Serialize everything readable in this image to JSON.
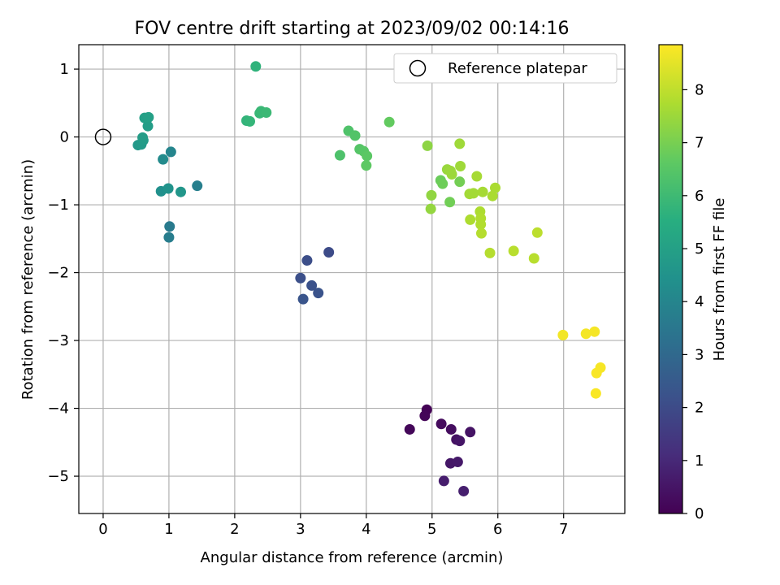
{
  "chart_data": {
    "type": "scatter",
    "title": "FOV centre drift starting at 2023/09/02 00:14:16",
    "xlabel": "Angular distance from reference (arcmin)",
    "ylabel": "Rotation from reference (arcmin)",
    "xlim": [
      -0.37,
      7.93
    ],
    "ylim": [
      -5.55,
      1.36
    ],
    "xticks": [
      0,
      1,
      2,
      3,
      4,
      5,
      6,
      7
    ],
    "xtick_labels": [
      "0",
      "1",
      "2",
      "3",
      "4",
      "5",
      "6",
      "7"
    ],
    "yticks": [
      1,
      0,
      -1,
      -2,
      -3,
      -4,
      -5
    ],
    "ytick_labels": [
      "1",
      "0",
      "−1",
      "−2",
      "−3",
      "−4",
      "−5"
    ],
    "grid": true,
    "colormap": "viridis",
    "colorbar": {
      "label": "Hours from first FF file",
      "range": [
        0,
        8.85
      ],
      "ticks": [
        0,
        1,
        2,
        3,
        4,
        5,
        6,
        7,
        8
      ],
      "tick_labels": [
        "0",
        "1",
        "2",
        "3",
        "4",
        "5",
        "6",
        "7",
        "8"
      ]
    },
    "legend": {
      "position": "top-right",
      "entries": [
        "Reference platepar"
      ]
    },
    "reference_point": {
      "x": 0,
      "y": 0
    },
    "points": [
      {
        "x": 4.92,
        "y": -4.02,
        "c": 0.05
      },
      {
        "x": 4.89,
        "y": -4.11,
        "c": 0.1
      },
      {
        "x": 4.66,
        "y": -4.31,
        "c": 0.15
      },
      {
        "x": 5.14,
        "y": -4.23,
        "c": 0.25
      },
      {
        "x": 5.29,
        "y": -4.31,
        "c": 0.3
      },
      {
        "x": 5.58,
        "y": -4.35,
        "c": 0.45
      },
      {
        "x": 5.37,
        "y": -4.46,
        "c": 0.4
      },
      {
        "x": 5.42,
        "y": -4.48,
        "c": 0.5
      },
      {
        "x": 5.28,
        "y": -4.81,
        "c": 0.55
      },
      {
        "x": 5.39,
        "y": -4.79,
        "c": 0.6
      },
      {
        "x": 5.18,
        "y": -5.07,
        "c": 0.7
      },
      {
        "x": 5.48,
        "y": -5.22,
        "c": 0.75
      },
      {
        "x": 3.43,
        "y": -1.7,
        "c": 2.0
      },
      {
        "x": 3.1,
        "y": -1.82,
        "c": 2.1
      },
      {
        "x": 3.0,
        "y": -2.08,
        "c": 2.15
      },
      {
        "x": 3.17,
        "y": -2.19,
        "c": 2.2
      },
      {
        "x": 3.27,
        "y": -2.3,
        "c": 2.25
      },
      {
        "x": 3.04,
        "y": -2.39,
        "c": 2.3
      },
      {
        "x": 1.01,
        "y": -1.32,
        "c": 3.6
      },
      {
        "x": 1.0,
        "y": -1.48,
        "c": 3.7
      },
      {
        "x": 1.43,
        "y": -0.72,
        "c": 3.8
      },
      {
        "x": 1.03,
        "y": -0.22,
        "c": 4.0
      },
      {
        "x": 0.91,
        "y": -0.33,
        "c": 4.2
      },
      {
        "x": 0.88,
        "y": -0.8,
        "c": 4.4
      },
      {
        "x": 0.99,
        "y": -0.76,
        "c": 4.5
      },
      {
        "x": 1.18,
        "y": -0.81,
        "c": 4.6
      },
      {
        "x": 0.53,
        "y": -0.12,
        "c": 4.7
      },
      {
        "x": 0.58,
        "y": -0.11,
        "c": 4.75
      },
      {
        "x": 0.61,
        "y": -0.05,
        "c": 4.8
      },
      {
        "x": 0.6,
        "y": -0.01,
        "c": 4.85
      },
      {
        "x": 0.68,
        "y": 0.16,
        "c": 4.9
      },
      {
        "x": 0.63,
        "y": 0.28,
        "c": 4.95
      },
      {
        "x": 0.69,
        "y": 0.29,
        "c": 5.0
      },
      {
        "x": 2.32,
        "y": 1.04,
        "c": 5.7
      },
      {
        "x": 2.18,
        "y": 0.24,
        "c": 5.75
      },
      {
        "x": 2.23,
        "y": 0.23,
        "c": 5.8
      },
      {
        "x": 2.38,
        "y": 0.35,
        "c": 5.85
      },
      {
        "x": 2.4,
        "y": 0.38,
        "c": 5.9
      },
      {
        "x": 2.48,
        "y": 0.36,
        "c": 5.95
      },
      {
        "x": 3.6,
        "y": -0.27,
        "c": 6.3
      },
      {
        "x": 3.73,
        "y": 0.09,
        "c": 6.35
      },
      {
        "x": 3.83,
        "y": 0.02,
        "c": 6.4
      },
      {
        "x": 3.9,
        "y": -0.18,
        "c": 6.45
      },
      {
        "x": 3.96,
        "y": -0.21,
        "c": 6.5
      },
      {
        "x": 4.01,
        "y": -0.28,
        "c": 6.55
      },
      {
        "x": 4.0,
        "y": -0.42,
        "c": 6.6
      },
      {
        "x": 4.35,
        "y": 0.22,
        "c": 6.7
      },
      {
        "x": 5.13,
        "y": -0.64,
        "c": 6.8
      },
      {
        "x": 5.16,
        "y": -0.69,
        "c": 6.85
      },
      {
        "x": 5.27,
        "y": -0.96,
        "c": 6.9
      },
      {
        "x": 5.42,
        "y": -0.66,
        "c": 6.95
      },
      {
        "x": 4.93,
        "y": -0.13,
        "c": 7.3
      },
      {
        "x": 4.99,
        "y": -0.86,
        "c": 7.35
      },
      {
        "x": 4.98,
        "y": -1.06,
        "c": 7.4
      },
      {
        "x": 5.23,
        "y": -0.48,
        "c": 7.45
      },
      {
        "x": 5.28,
        "y": -0.5,
        "c": 7.5
      },
      {
        "x": 5.3,
        "y": -0.55,
        "c": 7.5
      },
      {
        "x": 5.42,
        "y": -0.1,
        "c": 7.55
      },
      {
        "x": 5.43,
        "y": -0.43,
        "c": 7.55
      },
      {
        "x": 5.57,
        "y": -0.84,
        "c": 7.6
      },
      {
        "x": 5.63,
        "y": -0.83,
        "c": 7.6
      },
      {
        "x": 5.68,
        "y": -0.58,
        "c": 7.65
      },
      {
        "x": 5.77,
        "y": -0.81,
        "c": 7.65
      },
      {
        "x": 5.92,
        "y": -0.87,
        "c": 7.7
      },
      {
        "x": 5.96,
        "y": -0.75,
        "c": 7.7
      },
      {
        "x": 5.58,
        "y": -1.22,
        "c": 7.75
      },
      {
        "x": 5.73,
        "y": -1.1,
        "c": 7.75
      },
      {
        "x": 5.74,
        "y": -1.2,
        "c": 7.8
      },
      {
        "x": 5.74,
        "y": -1.29,
        "c": 7.8
      },
      {
        "x": 5.75,
        "y": -1.42,
        "c": 7.85
      },
      {
        "x": 5.88,
        "y": -1.71,
        "c": 7.85
      },
      {
        "x": 6.24,
        "y": -1.68,
        "c": 7.9
      },
      {
        "x": 6.55,
        "y": -1.79,
        "c": 7.9
      },
      {
        "x": 6.6,
        "y": -1.41,
        "c": 7.95
      },
      {
        "x": 6.99,
        "y": -2.92,
        "c": 8.7
      },
      {
        "x": 7.34,
        "y": -2.9,
        "c": 8.72
      },
      {
        "x": 7.47,
        "y": -2.87,
        "c": 8.74
      },
      {
        "x": 7.56,
        "y": -3.4,
        "c": 8.76
      },
      {
        "x": 7.5,
        "y": -3.48,
        "c": 8.78
      },
      {
        "x": 7.49,
        "y": -3.78,
        "c": 8.8
      }
    ]
  }
}
